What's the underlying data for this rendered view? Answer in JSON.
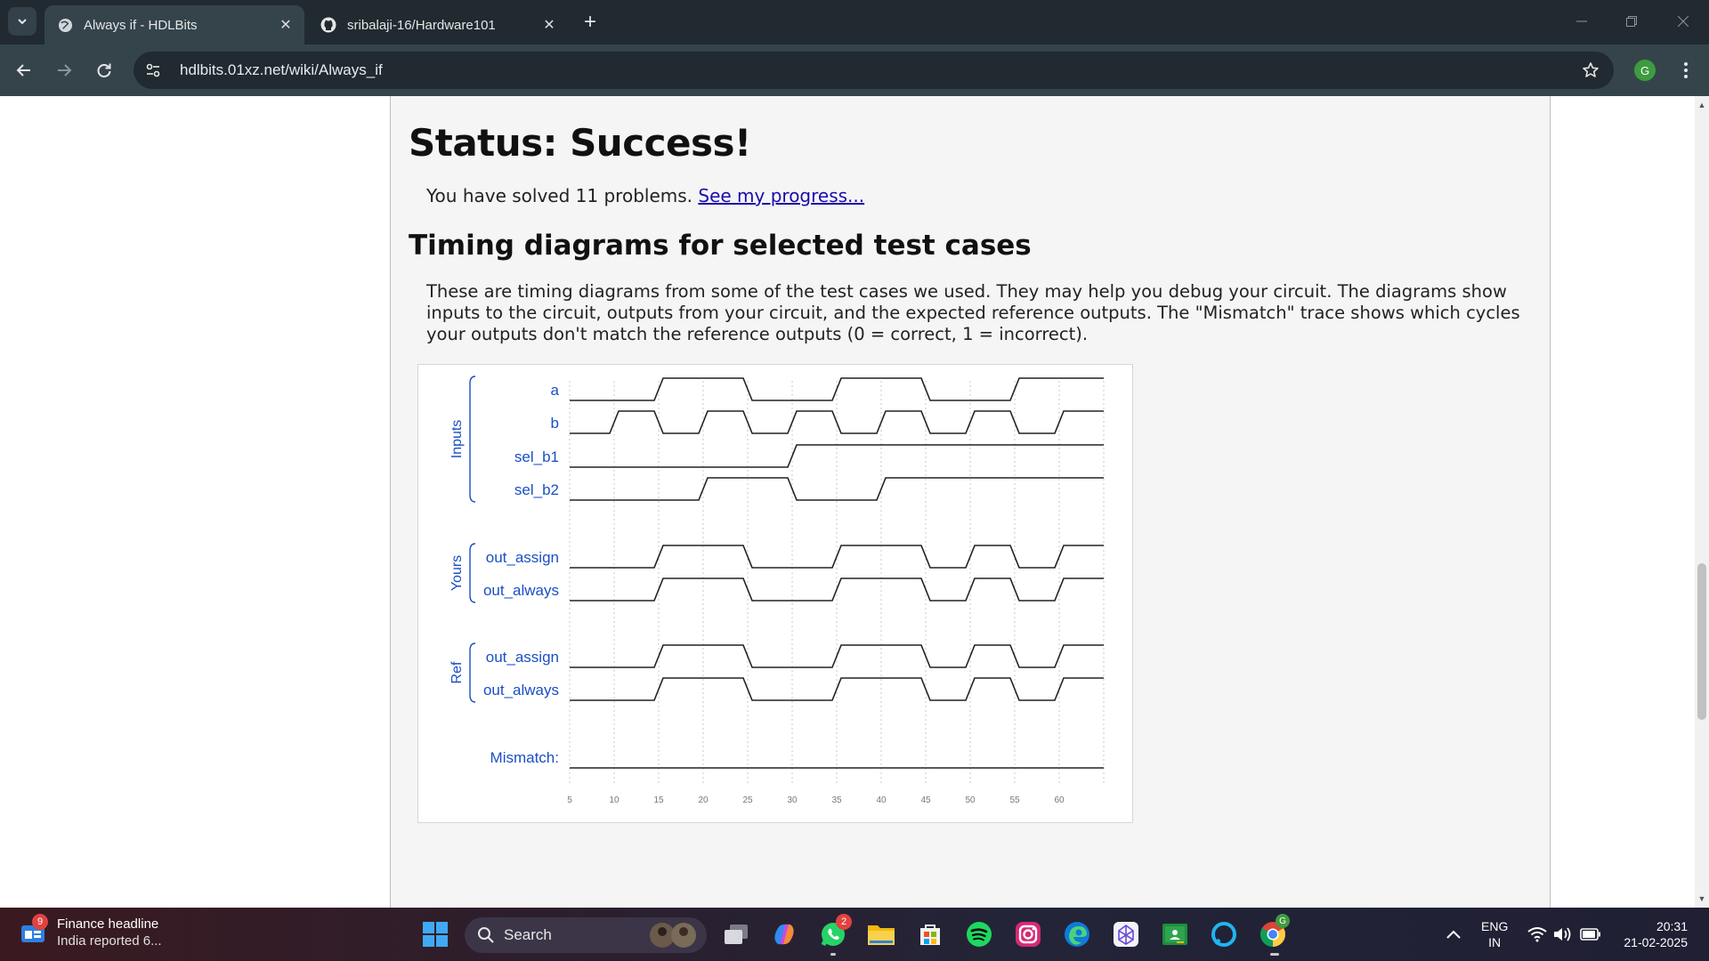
{
  "browser": {
    "tabs": [
      {
        "title": "Always if - HDLBits",
        "active": true
      },
      {
        "title": "sribalaji-16/Hardware101",
        "active": false
      }
    ],
    "url": "hdlbits.01xz.net/wiki/Always_if",
    "profile_initial": "G"
  },
  "page": {
    "status_heading": "Status: Success!",
    "solved_text": "You have solved 11 problems.",
    "progress_link": "See my progress...",
    "timing_heading": "Timing diagrams for selected test cases",
    "timing_description": "These are timing diagrams from some of the test cases we used. They may help you debug your circuit. The diagrams show inputs to the circuit, outputs from your circuit, and the expected reference outputs. The \"Mismatch\" trace shows which cycles your outputs don't match the reference outputs (0 = correct, 1 = incorrect)."
  },
  "chart_data": {
    "type": "timing",
    "x_ticks": [
      5,
      10,
      15,
      20,
      25,
      30,
      35,
      40,
      45,
      50,
      55,
      60
    ],
    "x_range": [
      5,
      65
    ],
    "groups": [
      {
        "name": "Inputs",
        "signals": [
          "a",
          "b",
          "sel_b1",
          "sel_b2"
        ]
      },
      {
        "name": "Yours",
        "signals": [
          "out_assign",
          "out_always"
        ]
      },
      {
        "name": "Ref",
        "signals": [
          "out_assign",
          "out_always"
        ]
      }
    ],
    "signals": [
      {
        "group": "Inputs",
        "name": "a",
        "transitions": [
          [
            5,
            0
          ],
          [
            15,
            1
          ],
          [
            25,
            0
          ],
          [
            35,
            1
          ],
          [
            45,
            0
          ],
          [
            55,
            1
          ]
        ]
      },
      {
        "group": "Inputs",
        "name": "b",
        "transitions": [
          [
            5,
            0
          ],
          [
            10,
            1
          ],
          [
            15,
            0
          ],
          [
            20,
            1
          ],
          [
            25,
            0
          ],
          [
            30,
            1
          ],
          [
            35,
            0
          ],
          [
            40,
            1
          ],
          [
            45,
            0
          ],
          [
            50,
            1
          ],
          [
            55,
            0
          ],
          [
            60,
            1
          ]
        ]
      },
      {
        "group": "Inputs",
        "name": "sel_b1",
        "transitions": [
          [
            5,
            0
          ],
          [
            30,
            1
          ]
        ]
      },
      {
        "group": "Inputs",
        "name": "sel_b2",
        "transitions": [
          [
            5,
            0
          ],
          [
            20,
            1
          ],
          [
            30,
            0
          ],
          [
            40,
            1
          ]
        ]
      },
      {
        "group": "Yours",
        "name": "out_assign",
        "transitions": [
          [
            5,
            0
          ],
          [
            15,
            1
          ],
          [
            25,
            0
          ],
          [
            35,
            1
          ],
          [
            45,
            0
          ],
          [
            50,
            1
          ],
          [
            55,
            0
          ],
          [
            60,
            1
          ]
        ]
      },
      {
        "group": "Yours",
        "name": "out_always",
        "transitions": [
          [
            5,
            0
          ],
          [
            15,
            1
          ],
          [
            25,
            0
          ],
          [
            35,
            1
          ],
          [
            45,
            0
          ],
          [
            50,
            1
          ],
          [
            55,
            0
          ],
          [
            60,
            1
          ]
        ]
      },
      {
        "group": "Ref",
        "name": "out_assign",
        "transitions": [
          [
            5,
            0
          ],
          [
            15,
            1
          ],
          [
            25,
            0
          ],
          [
            35,
            1
          ],
          [
            45,
            0
          ],
          [
            50,
            1
          ],
          [
            55,
            0
          ],
          [
            60,
            1
          ]
        ]
      },
      {
        "group": "Ref",
        "name": "out_always",
        "transitions": [
          [
            5,
            0
          ],
          [
            15,
            1
          ],
          [
            25,
            0
          ],
          [
            35,
            1
          ],
          [
            45,
            0
          ],
          [
            50,
            1
          ],
          [
            55,
            0
          ],
          [
            60,
            1
          ]
        ]
      },
      {
        "group": "",
        "name": "Mismatch:",
        "transitions": [
          [
            5,
            0
          ]
        ]
      }
    ],
    "colors": {
      "label": "#1a4fc4",
      "trace": "#222222",
      "grid": "#c8c8c8",
      "tick": "#777777"
    }
  },
  "taskbar": {
    "news_badge": "9",
    "news_title": "Finance headline",
    "news_subtitle": "India reported 6...",
    "search_label": "Search",
    "whatsapp_badge": "2",
    "chrome_badge": "G",
    "language": "ENG",
    "region": "IN",
    "time": "20:31",
    "date": "21-02-2025"
  }
}
